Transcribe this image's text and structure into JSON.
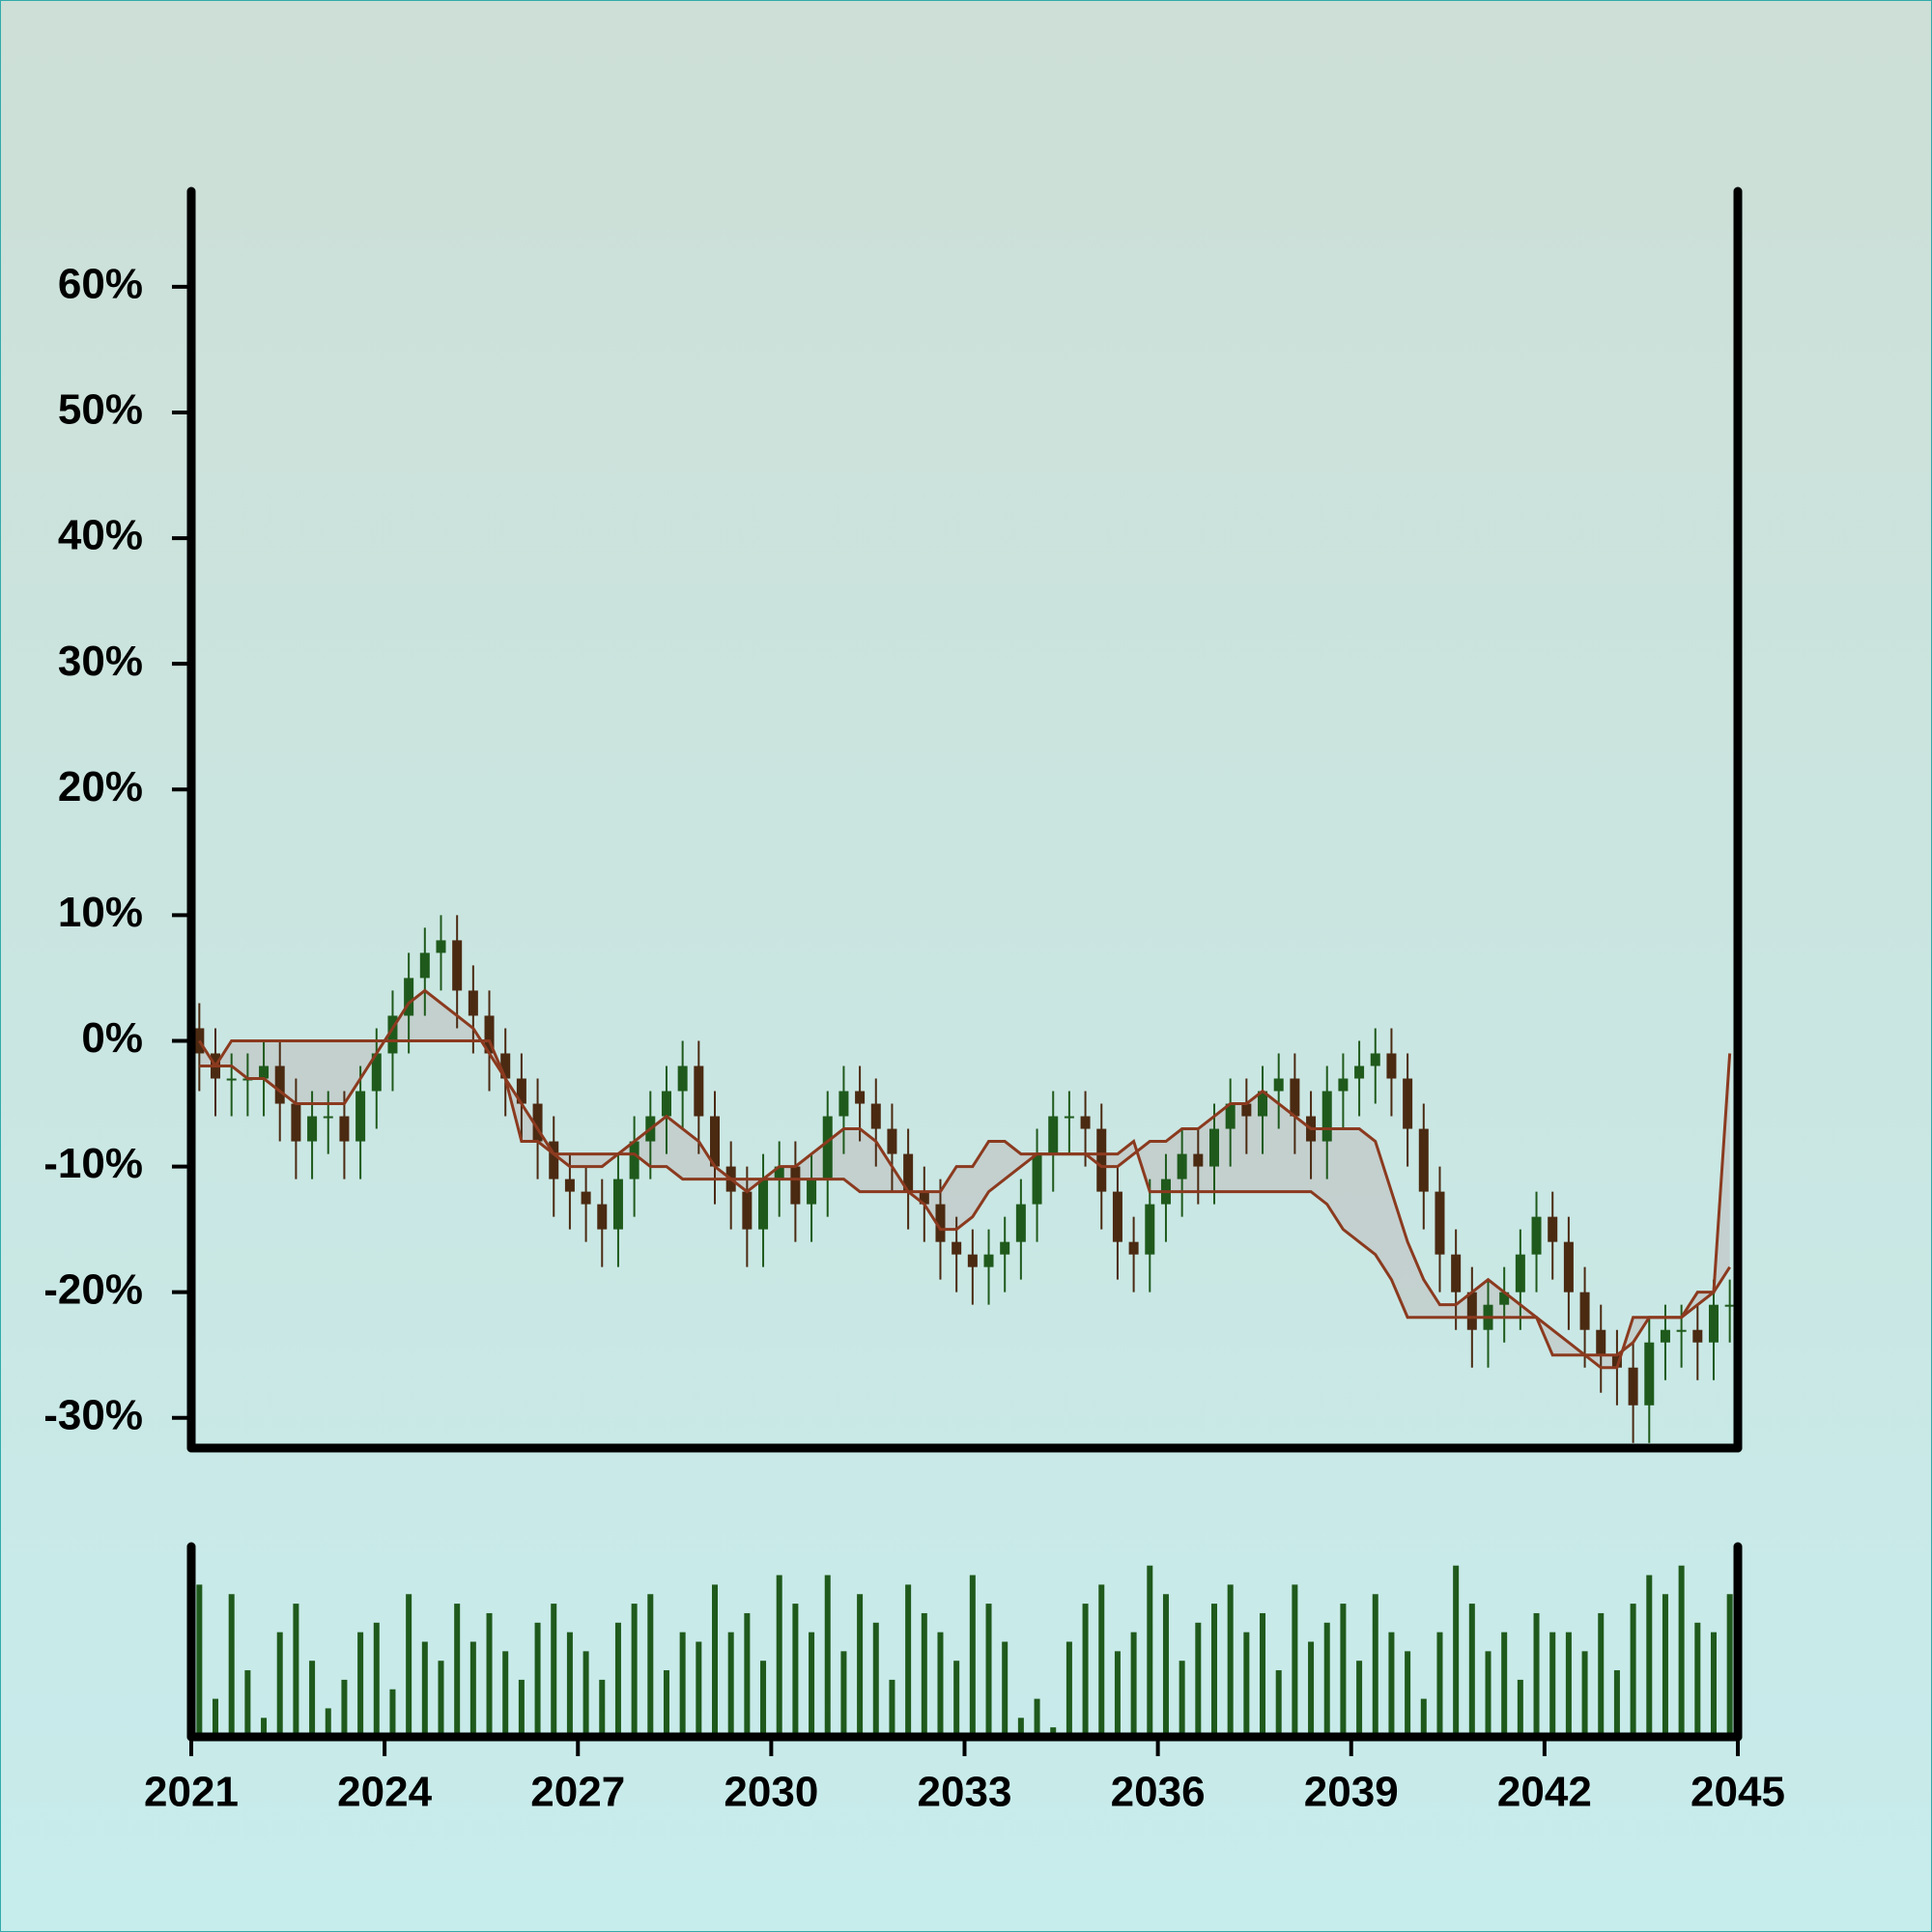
{
  "chart_data": {
    "type": "candlestick",
    "x": [
      2021.125,
      2021.375,
      2021.625,
      2021.875,
      2022.125,
      2022.375,
      2022.625,
      2022.875,
      2023.125,
      2023.375,
      2023.625,
      2023.875,
      2024.125,
      2024.375,
      2024.625,
      2024.875,
      2025.125,
      2025.375,
      2025.625,
      2025.875,
      2026.125,
      2026.375,
      2026.625,
      2026.875,
      2027.125,
      2027.375,
      2027.625,
      2027.875,
      2028.125,
      2028.375,
      2028.625,
      2028.875,
      2029.125,
      2029.375,
      2029.625,
      2029.875,
      2030.125,
      2030.375,
      2030.625,
      2030.875,
      2031.125,
      2031.375,
      2031.625,
      2031.875,
      2032.125,
      2032.375,
      2032.625,
      2032.875,
      2033.125,
      2033.375,
      2033.625,
      2033.875,
      2034.125,
      2034.375,
      2034.625,
      2034.875,
      2035.125,
      2035.375,
      2035.625,
      2035.875,
      2036.125,
      2036.375,
      2036.625,
      2036.875,
      2037.125,
      2037.375,
      2037.625,
      2037.875,
      2038.125,
      2038.375,
      2038.625,
      2038.875,
      2039.125,
      2039.375,
      2039.625,
      2039.875,
      2040.125,
      2040.375,
      2040.625,
      2040.875,
      2041.125,
      2041.375,
      2041.625,
      2041.875,
      2042.125,
      2042.375,
      2042.625,
      2042.875,
      2043.125,
      2043.375,
      2043.625,
      2043.875,
      2044.125,
      2044.375,
      2044.625,
      2044.875
    ],
    "open": [
      1,
      -1,
      -3,
      -3,
      -3,
      -2,
      -5,
      -8,
      -6,
      -6,
      -8,
      -4,
      -1,
      2,
      5,
      7,
      8,
      4,
      2,
      -1,
      -3,
      -5,
      -8,
      -11,
      -12,
      -13,
      -15,
      -11,
      -8,
      -6,
      -4,
      -2,
      -6,
      -10,
      -12,
      -15,
      -11,
      -10,
      -13,
      -11,
      -6,
      -4,
      -5,
      -7,
      -9,
      -12,
      -13,
      -16,
      -17,
      -18,
      -17,
      -16,
      -13,
      -9,
      -6,
      -6,
      -7,
      -12,
      -16,
      -17,
      -13,
      -11,
      -9,
      -10,
      -7,
      -5,
      -6,
      -4,
      -3,
      -6,
      -8,
      -4,
      -3,
      -2,
      -1,
      -3,
      -7,
      -12,
      -17,
      -20,
      -23,
      -21,
      -20,
      -17,
      -14,
      -16,
      -20,
      -23,
      -25,
      -26,
      -29,
      -24,
      -23,
      -23,
      -24,
      -21
    ],
    "high": [
      3,
      1,
      -1,
      -1,
      0,
      0,
      -3,
      -4,
      -4,
      -4,
      -2,
      1,
      4,
      7,
      9,
      10,
      10,
      6,
      4,
      1,
      -1,
      -3,
      -6,
      -9,
      -10,
      -11,
      -9,
      -6,
      -4,
      -2,
      0,
      0,
      -4,
      -8,
      -10,
      -9,
      -8,
      -8,
      -9,
      -4,
      -2,
      -2,
      -3,
      -5,
      -7,
      -10,
      -11,
      -14,
      -15,
      -15,
      -14,
      -11,
      -7,
      -4,
      -4,
      -4,
      -5,
      -10,
      -14,
      -11,
      -9,
      -7,
      -7,
      -5,
      -3,
      -3,
      -2,
      -1,
      -1,
      -4,
      -2,
      -1,
      0,
      1,
      1,
      -1,
      -5,
      -10,
      -15,
      -18,
      -19,
      -18,
      -15,
      -12,
      -12,
      -14,
      -18,
      -21,
      -23,
      -24,
      -22,
      -21,
      -21,
      -21,
      -19,
      -19
    ],
    "low": [
      -4,
      -6,
      -6,
      -6,
      -6,
      -8,
      -11,
      -11,
      -9,
      -11,
      -11,
      -7,
      -4,
      -1,
      2,
      4,
      1,
      -1,
      -4,
      -6,
      -8,
      -11,
      -14,
      -15,
      -16,
      -18,
      -18,
      -14,
      -11,
      -9,
      -7,
      -9,
      -13,
      -15,
      -18,
      -18,
      -14,
      -16,
      -16,
      -14,
      -9,
      -8,
      -10,
      -12,
      -15,
      -16,
      -19,
      -20,
      -21,
      -21,
      -20,
      -19,
      -16,
      -12,
      -9,
      -10,
      -15,
      -19,
      -20,
      -20,
      -16,
      -14,
      -13,
      -13,
      -10,
      -9,
      -9,
      -7,
      -9,
      -11,
      -11,
      -7,
      -6,
      -5,
      -6,
      -10,
      -15,
      -20,
      -23,
      -26,
      -26,
      -24,
      -23,
      -20,
      -19,
      -23,
      -26,
      -28,
      -29,
      -32,
      -32,
      -27,
      -26,
      -27,
      -27,
      -24
    ],
    "close": [
      -1,
      -3,
      -3,
      -3,
      -2,
      -5,
      -8,
      -6,
      -6,
      -8,
      -4,
      -1,
      2,
      5,
      7,
      8,
      4,
      2,
      -1,
      -3,
      -5,
      -8,
      -11,
      -12,
      -13,
      -15,
      -11,
      -8,
      -6,
      -4,
      -2,
      -6,
      -10,
      -12,
      -15,
      -11,
      -10,
      -13,
      -11,
      -6,
      -4,
      -5,
      -7,
      -9,
      -12,
      -13,
      -16,
      -17,
      -18,
      -17,
      -16,
      -13,
      -9,
      -6,
      -6,
      -7,
      -12,
      -16,
      -17,
      -13,
      -11,
      -9,
      -10,
      -7,
      -5,
      -6,
      -4,
      -3,
      -6,
      -8,
      -4,
      -3,
      -2,
      -1,
      -3,
      -7,
      -12,
      -17,
      -20,
      -23,
      -21,
      -20,
      -17,
      -14,
      -16,
      -20,
      -23,
      -25,
      -26,
      -29,
      -24,
      -23,
      -23,
      -24,
      -21,
      -21
    ],
    "up_color": "#1f5a1c",
    "down_color": "#4b2a12",
    "lines": [
      {
        "color": "#8b3a1f",
        "values": [
          0,
          -2,
          -2,
          -3,
          -3,
          -4,
          -5,
          -5,
          -5,
          -5,
          -3,
          -1,
          1,
          3,
          4,
          3,
          2,
          1,
          -1,
          -3,
          -5,
          -7,
          -9,
          -10,
          -10,
          -10,
          -9,
          -8,
          -7,
          -6,
          -7,
          -8,
          -10,
          -11,
          -12,
          -11,
          -10,
          -10,
          -9,
          -8,
          -7,
          -7,
          -8,
          -10,
          -12,
          -13,
          -15,
          -15,
          -14,
          -12,
          -11,
          -10,
          -9,
          -9,
          -9,
          -9,
          -10,
          -10,
          -9,
          -8,
          -8,
          -7,
          -7,
          -6,
          -5,
          -5,
          -4,
          -5,
          -6,
          -7,
          -7,
          -7,
          -7,
          -8,
          -12,
          -16,
          -19,
          -21,
          -21,
          -20,
          -19,
          -20,
          -21,
          -22,
          -23,
          -24,
          -25,
          -25,
          -25,
          -24,
          -22,
          -22,
          -22,
          -21,
          -20,
          -18
        ]
      },
      {
        "color": "#8b3a1f",
        "values": [
          -2,
          -2,
          0,
          0,
          0,
          0,
          0,
          0,
          0,
          0,
          0,
          0,
          0,
          0,
          0,
          0,
          0,
          0,
          0,
          -3,
          -8,
          -8,
          -9,
          -9,
          -9,
          -9,
          -9,
          -9,
          -10,
          -10,
          -11,
          -11,
          -11,
          -11,
          -11,
          -11,
          -11,
          -11,
          -11,
          -11,
          -11,
          -12,
          -12,
          -12,
          -12,
          -12,
          -12,
          -10,
          -10,
          -8,
          -8,
          -9,
          -9,
          -9,
          -9,
          -9,
          -9,
          -9,
          -8,
          -12,
          -12,
          -12,
          -12,
          -12,
          -12,
          -12,
          -12,
          -12,
          -12,
          -12,
          -13,
          -15,
          -16,
          -17,
          -19,
          -22,
          -22,
          -22,
          -22,
          -22,
          -22,
          -22,
          -22,
          -22,
          -25,
          -25,
          -25,
          -26,
          -26,
          -22,
          -22,
          -22,
          -22,
          -20,
          -20,
          -1
        ]
      }
    ],
    "cloud_fill": "rgba(190,190,190,0.55)",
    "volume": [
      80,
      20,
      75,
      35,
      10,
      55,
      70,
      40,
      15,
      30,
      55,
      60,
      25,
      75,
      50,
      40,
      70,
      50,
      65,
      45,
      30,
      60,
      70,
      55,
      45,
      30,
      60,
      70,
      75,
      35,
      55,
      50,
      80,
      55,
      65,
      40,
      85,
      70,
      55,
      85,
      45,
      75,
      60,
      30,
      80,
      65,
      55,
      40,
      85,
      70,
      50,
      10,
      20,
      5,
      50,
      70,
      80,
      45,
      55,
      90,
      75,
      40,
      60,
      70,
      80,
      55,
      65,
      35,
      80,
      50,
      60,
      70,
      40,
      75,
      55,
      45,
      20,
      55,
      90,
      70,
      45,
      55,
      30,
      65,
      55,
      55,
      45,
      65,
      35,
      70,
      85,
      75,
      90,
      60,
      55,
      75
    ],
    "volume_color": "#1f5a1c",
    "volume_ylim": [
      0,
      100
    ],
    "xlim": [
      2021,
      2045
    ],
    "xticks": [
      2021,
      2024,
      2027,
      2030,
      2033,
      2036,
      2039,
      2042,
      2045
    ],
    "ylim": [
      -32.4,
      67.6
    ],
    "yticks": [
      {
        "value": -30,
        "label": "-30%"
      },
      {
        "value": -20,
        "label": "-20%"
      },
      {
        "value": -10,
        "label": "-10%"
      },
      {
        "value": 0,
        "label": "0%"
      },
      {
        "value": 10,
        "label": "10%"
      },
      {
        "value": 20,
        "label": "20%"
      },
      {
        "value": 30,
        "label": "30%"
      },
      {
        "value": 40,
        "label": "40%"
      },
      {
        "value": 50,
        "label": "50%"
      },
      {
        "value": 60,
        "label": "60%"
      }
    ]
  }
}
